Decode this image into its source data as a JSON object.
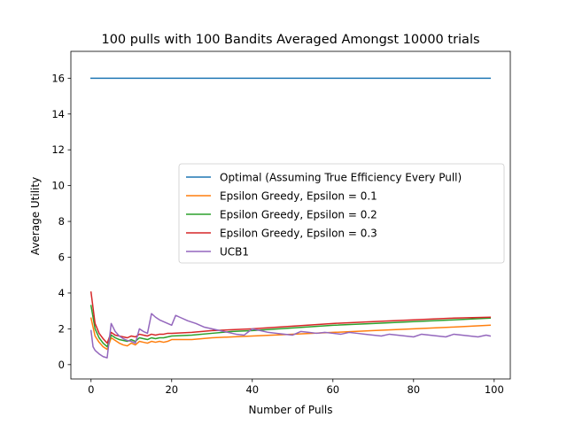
{
  "chart_data": {
    "type": "line",
    "title": "100 pulls with 100 Bandits Averaged Amongst 10000 trials",
    "xlabel": "Number of Pulls",
    "ylabel": "Average Utility",
    "xlim": [
      -5,
      104
    ],
    "ylim": [
      -0.8,
      17.5
    ],
    "xticks": [
      0,
      20,
      40,
      60,
      80,
      100
    ],
    "yticks": [
      0,
      2,
      4,
      6,
      8,
      10,
      12,
      14,
      16
    ],
    "grid": false,
    "legend_position": "center-right",
    "series": [
      {
        "name": "Optimal (Assuming True Efficiency Every Pull)",
        "color": "#1f77b4",
        "x": [
          0,
          99
        ],
        "y": [
          16,
          16
        ]
      },
      {
        "name": "Epsilon Greedy, Epsilon = 0.1",
        "color": "#ff7f0e",
        "x": [
          0,
          1,
          2,
          3,
          4,
          5,
          6,
          7,
          8,
          9,
          10,
          11,
          12,
          13,
          14,
          15,
          16,
          17,
          18,
          19,
          20,
          25,
          30,
          35,
          40,
          50,
          60,
          70,
          80,
          90,
          99
        ],
        "y": [
          2.6,
          1.6,
          1.25,
          1.0,
          0.85,
          1.5,
          1.35,
          1.2,
          1.1,
          1.05,
          1.2,
          1.1,
          1.3,
          1.25,
          1.2,
          1.3,
          1.25,
          1.3,
          1.25,
          1.3,
          1.4,
          1.4,
          1.5,
          1.55,
          1.6,
          1.7,
          1.8,
          1.9,
          2.0,
          2.1,
          2.2
        ]
      },
      {
        "name": "Epsilon Greedy, Epsilon = 0.2",
        "color": "#2ca02c",
        "x": [
          0,
          1,
          2,
          3,
          4,
          5,
          6,
          7,
          8,
          9,
          10,
          11,
          12,
          13,
          14,
          15,
          16,
          17,
          18,
          19,
          20,
          25,
          30,
          35,
          40,
          50,
          60,
          70,
          80,
          90,
          99
        ],
        "y": [
          3.3,
          2.0,
          1.5,
          1.2,
          1.0,
          1.65,
          1.5,
          1.4,
          1.35,
          1.3,
          1.4,
          1.3,
          1.5,
          1.45,
          1.4,
          1.5,
          1.45,
          1.5,
          1.5,
          1.55,
          1.6,
          1.65,
          1.75,
          1.85,
          1.9,
          2.05,
          2.2,
          2.3,
          2.4,
          2.5,
          2.6
        ]
      },
      {
        "name": "Epsilon Greedy, Epsilon = 0.3",
        "color": "#d62728",
        "x": [
          0,
          1,
          2,
          3,
          4,
          5,
          6,
          7,
          8,
          9,
          10,
          11,
          12,
          13,
          14,
          15,
          16,
          17,
          18,
          19,
          20,
          25,
          30,
          35,
          40,
          50,
          60,
          70,
          80,
          90,
          99
        ],
        "y": [
          4.05,
          2.3,
          1.75,
          1.45,
          1.2,
          1.8,
          1.65,
          1.6,
          1.55,
          1.5,
          1.6,
          1.55,
          1.7,
          1.65,
          1.6,
          1.7,
          1.65,
          1.7,
          1.7,
          1.75,
          1.75,
          1.8,
          1.9,
          1.95,
          2.0,
          2.15,
          2.3,
          2.4,
          2.5,
          2.6,
          2.65
        ]
      },
      {
        "name": "UCB1",
        "color": "#9467bd",
        "x": [
          0,
          0.5,
          1,
          2,
          3,
          4,
          5,
          6,
          7,
          8,
          9,
          10,
          11,
          12,
          13,
          14,
          15,
          16,
          17,
          18,
          19,
          20,
          21,
          22,
          24,
          26,
          28,
          30,
          32,
          34,
          36,
          38,
          40,
          42,
          44,
          46,
          48,
          50,
          52,
          54,
          56,
          58,
          60,
          62,
          64,
          66,
          68,
          70,
          72,
          74,
          76,
          78,
          80,
          82,
          84,
          86,
          88,
          90,
          92,
          94,
          96,
          98,
          99
        ],
        "y": [
          1.9,
          1.0,
          0.8,
          0.6,
          0.45,
          0.38,
          2.3,
          1.85,
          1.6,
          1.45,
          1.35,
          1.3,
          1.2,
          2.0,
          1.85,
          1.75,
          2.85,
          2.65,
          2.5,
          2.4,
          2.3,
          2.2,
          2.75,
          2.65,
          2.45,
          2.3,
          2.1,
          2.0,
          1.9,
          1.8,
          1.7,
          1.65,
          2.0,
          1.9,
          1.8,
          1.75,
          1.7,
          1.65,
          1.85,
          1.8,
          1.75,
          1.8,
          1.75,
          1.7,
          1.8,
          1.75,
          1.7,
          1.65,
          1.6,
          1.7,
          1.65,
          1.6,
          1.55,
          1.7,
          1.65,
          1.6,
          1.55,
          1.7,
          1.65,
          1.6,
          1.55,
          1.65,
          1.6
        ]
      }
    ]
  }
}
